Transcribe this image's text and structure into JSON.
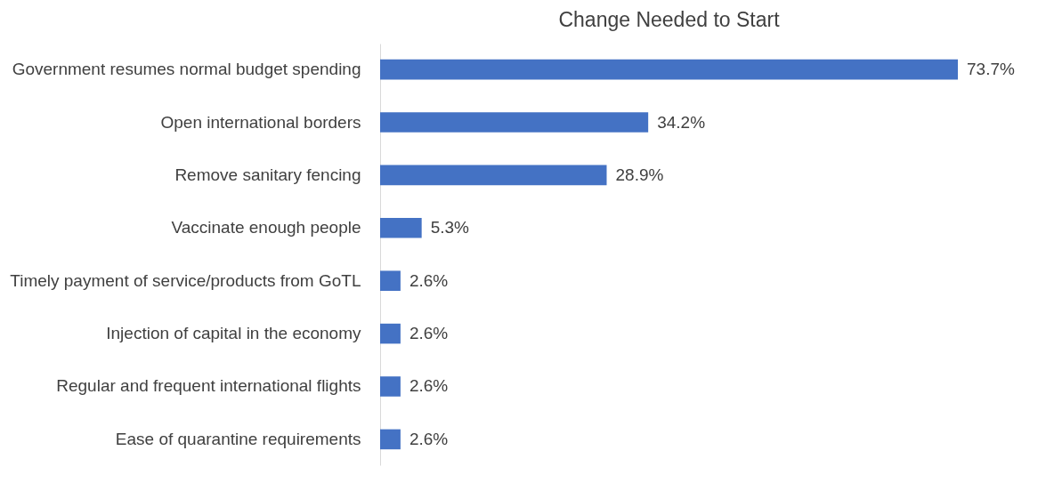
{
  "chart_data": {
    "type": "bar",
    "orientation": "horizontal",
    "title": "Change Needed to Start",
    "categories": [
      "Government resumes normal budget spending",
      "Open international borders",
      "Remove sanitary fencing",
      "Vaccinate enough people",
      "Timely payment of service/products from GoTL",
      "Injection of capital in the economy",
      "Regular and frequent international flights",
      "Ease of quarantine requirements"
    ],
    "values": [
      73.7,
      34.2,
      28.9,
      5.3,
      2.6,
      2.6,
      2.6,
      2.6
    ],
    "value_labels": [
      "73.7%",
      "34.2%",
      "28.9%",
      "5.3%",
      "2.6%",
      "2.6%",
      "2.6%",
      "2.6%"
    ],
    "color": "#4472c4",
    "tick_labels": "y"
  }
}
